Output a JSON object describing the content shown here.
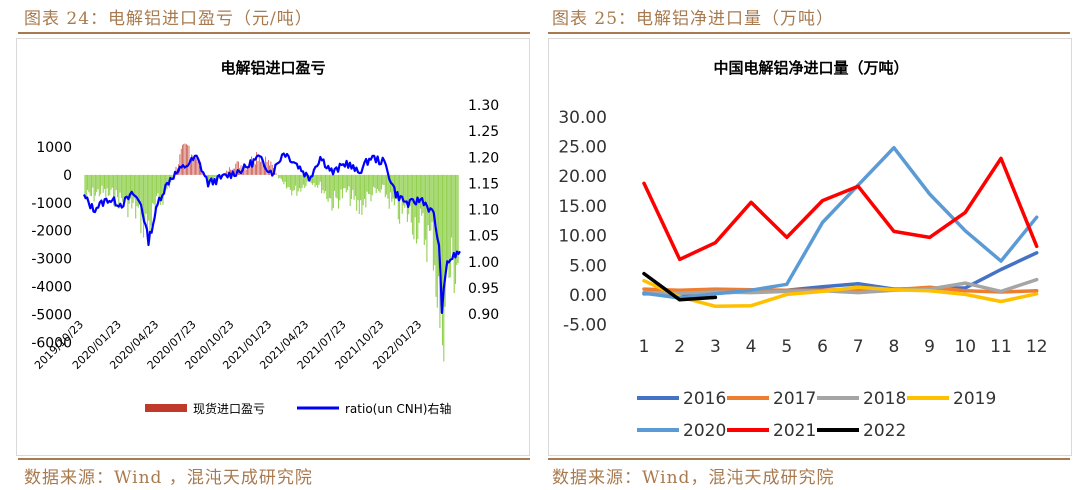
{
  "left": {
    "caption": "图表 24：电解铝进口盈亏（元/吨）",
    "source": "数据来源：Wind ，混沌天成研究院"
  },
  "right": {
    "caption": "图表 25：电解铝净进口量（万吨）",
    "source": "数据来源：Wind，混沌天成研究院"
  },
  "colors": {
    "caption": "#a87a4f",
    "profit_pos": "#c0392b",
    "profit_neg": "#92d050",
    "ratio": "#0000ff",
    "y2016": "#4472c4",
    "y2017": "#ed7d31",
    "y2018": "#a5a5a5",
    "y2019": "#ffc000",
    "y2020": "#5b9bd5",
    "y2021": "#ff0000",
    "y2022": "#000000"
  },
  "chart_data": [
    {
      "type": "bar",
      "title": "电解铝进口盈亏",
      "left_axis": {
        "ticks": [
          1000,
          0,
          -1000,
          -2000,
          -3000,
          -4000,
          -5000,
          -6000
        ],
        "range": [
          -6000,
          1500
        ]
      },
      "right_axis": {
        "ticks": [
          "1.30",
          "1.25",
          "1.20",
          "1.15",
          "1.10",
          "1.05",
          "1.00",
          "0.95",
          "0.90"
        ],
        "range": [
          0.9,
          1.3
        ]
      },
      "x_ticks": [
        "2019/10/23",
        "2020/01/23",
        "2020/04/23",
        "2020/07/23",
        "2020/10/23",
        "2021/01/23",
        "2021/04/23",
        "2021/07/23",
        "2021/10/23",
        "2022/01/23"
      ],
      "legend": [
        "现货进口盈亏",
        "ratio(un CNH)右轴"
      ],
      "series": [
        {
          "name": "现货进口盈亏",
          "kind": "bar",
          "keypoints": [
            [
              "2019/10/23",
              -900
            ],
            [
              "2019/12/01",
              -600
            ],
            [
              "2020/01/23",
              -900
            ],
            [
              "2020/03/01",
              -1300
            ],
            [
              "2020/03/25",
              -1900
            ],
            [
              "2020/04/23",
              -1000
            ],
            [
              "2020/05/20",
              -300
            ],
            [
              "2020/06/15",
              700
            ],
            [
              "2020/07/05",
              1000
            ],
            [
              "2020/07/23",
              600
            ],
            [
              "2020/08/20",
              -200
            ],
            [
              "2020/09/20",
              -100
            ],
            [
              "2020/10/23",
              400
            ],
            [
              "2020/11/20",
              300
            ],
            [
              "2020/12/20",
              800
            ],
            [
              "2021/01/23",
              300
            ],
            [
              "2021/02/20",
              -400
            ],
            [
              "2021/03/20",
              -600
            ],
            [
              "2021/04/23",
              -200
            ],
            [
              "2021/05/20",
              -400
            ],
            [
              "2021/06/20",
              -1000
            ],
            [
              "2021/07/23",
              -600
            ],
            [
              "2021/08/20",
              -1200
            ],
            [
              "2021/09/20",
              -700
            ],
            [
              "2021/10/23",
              -600
            ],
            [
              "2021/11/20",
              -1300
            ],
            [
              "2021/12/20",
              -1400
            ],
            [
              "2022/01/23",
              -2000
            ],
            [
              "2022/02/20",
              -2500
            ],
            [
              "2022/03/10",
              -5600
            ],
            [
              "2022/03/25",
              -3600
            ],
            [
              "2022/04/25",
              -3000
            ]
          ]
        },
        {
          "name": "ratio(un CNH)右轴",
          "kind": "line",
          "axis": "right",
          "points": [
            [
              "2019/10/23",
              1.125
            ],
            [
              "2019/11/15",
              1.1
            ],
            [
              "2019/12/20",
              1.12
            ],
            [
              "2020/01/23",
              1.11
            ],
            [
              "2020/02/20",
              1.13
            ],
            [
              "2020/03/10",
              1.11
            ],
            [
              "2020/03/28",
              1.04
            ],
            [
              "2020/04/23",
              1.12
            ],
            [
              "2020/05/20",
              1.16
            ],
            [
              "2020/06/20",
              1.18
            ],
            [
              "2020/07/23",
              1.2
            ],
            [
              "2020/08/20",
              1.15
            ],
            [
              "2020/09/20",
              1.16
            ],
            [
              "2020/10/23",
              1.17
            ],
            [
              "2020/11/20",
              1.18
            ],
            [
              "2020/12/20",
              1.2
            ],
            [
              "2021/01/23",
              1.17
            ],
            [
              "2021/02/20",
              1.21
            ],
            [
              "2021/03/20",
              1.19
            ],
            [
              "2021/04/23",
              1.16
            ],
            [
              "2021/05/20",
              1.2
            ],
            [
              "2021/06/20",
              1.17
            ],
            [
              "2021/07/23",
              1.19
            ],
            [
              "2021/08/20",
              1.17
            ],
            [
              "2021/09/20",
              1.2
            ],
            [
              "2021/10/23",
              1.19
            ],
            [
              "2021/11/20",
              1.13
            ],
            [
              "2021/12/20",
              1.11
            ],
            [
              "2022/01/23",
              1.12
            ],
            [
              "2022/02/20",
              1.09
            ],
            [
              "2022/03/05",
              1.03
            ],
            [
              "2022/03/12",
              0.91
            ],
            [
              "2022/03/25",
              1.0
            ],
            [
              "2022/04/10",
              1.01
            ],
            [
              "2022/04/25",
              1.02
            ]
          ]
        }
      ]
    },
    {
      "type": "line",
      "title": "中国电解铝净进口量（万吨）",
      "x": [
        "1",
        "2",
        "3",
        "4",
        "5",
        "6",
        "7",
        "8",
        "9",
        "10",
        "11",
        "12"
      ],
      "y_ticks": [
        "30.00",
        "25.00",
        "20.00",
        "15.00",
        "10.00",
        "5.00",
        "0.00",
        "-5.00"
      ],
      "ylim": [
        -5,
        30
      ],
      "series": [
        {
          "name": "2016",
          "values": [
            0.2,
            0.1,
            0.3,
            0.6,
            0.8,
            1.4,
            1.9,
            1.0,
            1.1,
            1.2,
            4.3,
            7.1
          ]
        },
        {
          "name": "2017",
          "values": [
            1.0,
            0.8,
            1.0,
            0.9,
            0.8,
            0.8,
            1.0,
            0.9,
            1.3,
            0.7,
            0.5,
            0.7
          ]
        },
        {
          "name": "2018",
          "values": [
            0.4,
            0.3,
            0.5,
            0.4,
            0.6,
            0.7,
            0.4,
            0.8,
            1.0,
            2.0,
            0.6,
            2.6
          ]
        },
        {
          "name": "2019",
          "values": [
            2.4,
            -0.3,
            -1.9,
            -1.8,
            0.1,
            0.6,
            1.3,
            0.9,
            0.7,
            0.1,
            -1.1,
            0.2
          ]
        },
        {
          "name": "2020",
          "values": [
            0.3,
            -0.5,
            0.2,
            0.8,
            1.8,
            12.2,
            18.5,
            24.8,
            17.0,
            10.8,
            5.7,
            13.1
          ]
        },
        {
          "name": "2021",
          "values": [
            18.8,
            6.0,
            8.8,
            15.6,
            9.7,
            15.9,
            18.3,
            10.7,
            9.7,
            13.9,
            23.0,
            8.2
          ]
        },
        {
          "name": "2022",
          "values": [
            3.6,
            -0.8,
            -0.4,
            null,
            null,
            null,
            null,
            null,
            null,
            null,
            null,
            null
          ]
        }
      ]
    }
  ]
}
